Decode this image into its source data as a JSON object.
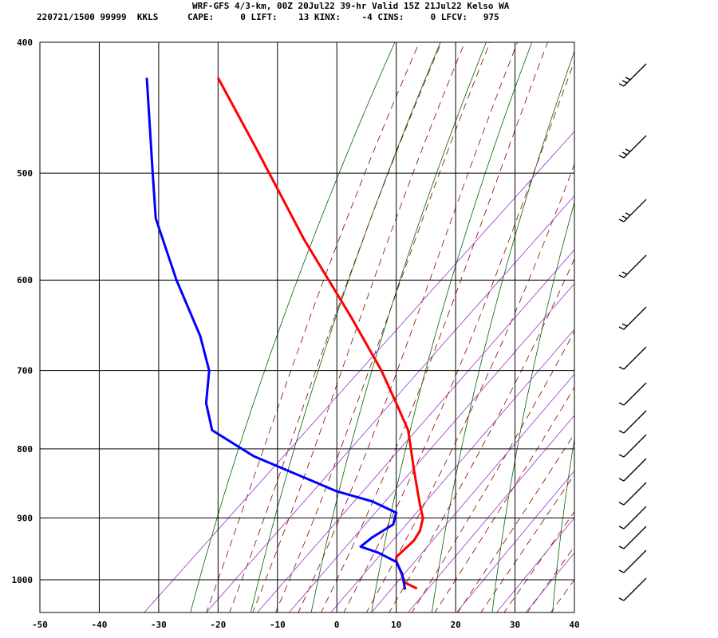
{
  "header": {
    "title": "WRF-GFS 4/3-km, 00Z 20Jul22 39-hr Valid 15Z 21Jul22 Kelso WA",
    "line2_left": "220721/1500 99999  KKLS",
    "line2_right": "CAPE:     0 LIFT:    13 KINX:    -4 CINS:     0 LFCV:   975"
  },
  "chart_data": {
    "type": "line",
    "chart_style": "skew-T log-P sounding",
    "title": "WRF-GFS 4/3-km, 00Z 20Jul22 39-hr Valid 15Z 21Jul22 Kelso WA",
    "xlabel": "",
    "ylabel": "",
    "xlim": [
      -50,
      40
    ],
    "ylim": [
      1040,
      400
    ],
    "y_scale": "log",
    "x_ticks": [
      -50,
      -40,
      -30,
      -20,
      -10,
      0,
      10,
      20,
      30,
      40
    ],
    "y_ticks": [
      1000,
      900,
      800,
      700,
      600,
      500,
      400
    ],
    "grid": true,
    "series": [
      {
        "color": "#ff0000",
        "points": [
          [
            -20,
            425
          ],
          [
            -13.5,
            480
          ],
          [
            -5.5,
            560
          ],
          [
            2.5,
            640
          ],
          [
            7.5,
            700
          ],
          [
            10,
            740
          ],
          [
            12,
            775
          ],
          [
            13,
            830
          ],
          [
            14,
            880
          ],
          [
            14.5,
            900
          ],
          [
            14,
            920
          ],
          [
            13,
            935
          ],
          [
            10,
            962
          ],
          [
            10,
            968
          ],
          [
            11.5,
            1005
          ],
          [
            13.5,
            1015
          ]
        ]
      },
      {
        "color": "#0000ff",
        "points": [
          [
            -32,
            425
          ],
          [
            -31,
            500
          ],
          [
            -30.5,
            540
          ],
          [
            -27,
            600
          ],
          [
            -23,
            660
          ],
          [
            -21.5,
            700
          ],
          [
            -22,
            740
          ],
          [
            -21,
            775
          ],
          [
            -14,
            810
          ],
          [
            0,
            860
          ],
          [
            6,
            875
          ],
          [
            10,
            892
          ],
          [
            9.5,
            910
          ],
          [
            6,
            930
          ],
          [
            4,
            945
          ],
          [
            7,
            955
          ],
          [
            10,
            970
          ],
          [
            11,
            990
          ],
          [
            11.5,
            1017
          ]
        ]
      }
    ],
    "wind_barbs_position": "right",
    "colors": {
      "temperature": "#ff0000",
      "dewpoint": "#0000ff",
      "isotherm_grid": "#000000",
      "dry_adiabat": "#006400",
      "moist_adiabat": "#8b0000",
      "mixing_ratio": "#9932cc"
    }
  }
}
